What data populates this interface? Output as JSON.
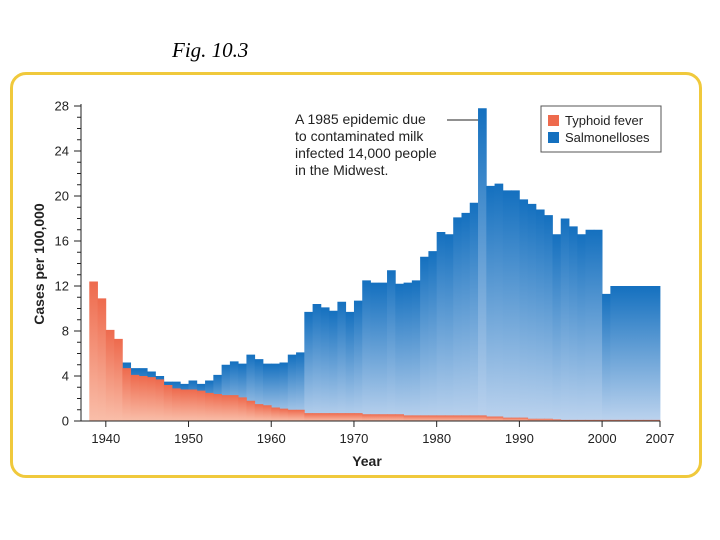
{
  "figure": {
    "label": "Fig. 10.3"
  },
  "colors": {
    "typhoid": "#ee6a4d",
    "typhoid_light": "#f9bea9",
    "salmonella": "#1470bf",
    "salmonella_light": "#bcd3ee",
    "frame": "#f0c93c"
  },
  "chart_data": {
    "type": "area",
    "xlabel": "Year",
    "ylabel": "Cases per 100,000",
    "xlim": [
      1937,
      2007
    ],
    "ylim": [
      0,
      28
    ],
    "x_ticks": [
      1940,
      1950,
      1960,
      1970,
      1980,
      1990,
      2000,
      2007
    ],
    "y_ticks": [
      0,
      4,
      8,
      12,
      16,
      20,
      24,
      28
    ],
    "grid": false,
    "legend": {
      "position": "top-right",
      "entries": [
        "Typhoid fever",
        "Salmonelloses"
      ]
    },
    "annotation": {
      "lines": [
        "A 1985 epidemic due",
        "to contaminated milk",
        "infected 14,000 people",
        "in the Midwest."
      ],
      "points_to": [
        1985,
        27.8
      ]
    },
    "series": [
      {
        "name": "Salmonelloses",
        "x": [
          1942,
          1943,
          1944,
          1945,
          1946,
          1947,
          1948,
          1949,
          1950,
          1951,
          1952,
          1953,
          1954,
          1955,
          1956,
          1957,
          1958,
          1959,
          1960,
          1961,
          1962,
          1963,
          1964,
          1965,
          1966,
          1967,
          1968,
          1969,
          1970,
          1971,
          1972,
          1973,
          1974,
          1975,
          1976,
          1977,
          1978,
          1979,
          1980,
          1981,
          1982,
          1983,
          1984,
          1985,
          1986,
          1987,
          1988,
          1989,
          1990,
          1991,
          1992,
          1993,
          1994,
          1995,
          1996,
          1997,
          1998,
          1999,
          2000,
          2001,
          2002,
          2003,
          2004,
          2005,
          2006
        ],
        "values": [
          5.2,
          4.7,
          4.7,
          4.4,
          4.0,
          3.5,
          3.5,
          3.3,
          3.6,
          3.3,
          3.6,
          4.1,
          5.0,
          5.3,
          5.1,
          5.9,
          5.5,
          5.1,
          5.1,
          5.2,
          5.9,
          6.1,
          9.7,
          10.4,
          10.1,
          9.8,
          10.6,
          9.7,
          10.7,
          12.5,
          12.3,
          12.3,
          13.4,
          12.2,
          12.3,
          12.5,
          14.6,
          15.1,
          16.8,
          16.6,
          18.1,
          18.5,
          19.4,
          27.8,
          20.9,
          21.1,
          20.5,
          20.5,
          19.7,
          19.3,
          18.8,
          18.3,
          16.6,
          18.0,
          17.3,
          16.6,
          17.0,
          17.0,
          11.3,
          12.0,
          12.0,
          12.0,
          12.0,
          12.0,
          12.0
        ]
      },
      {
        "name": "Typhoid fever",
        "x": [
          1938,
          1939,
          1940,
          1941,
          1942,
          1943,
          1944,
          1945,
          1946,
          1947,
          1948,
          1949,
          1950,
          1951,
          1952,
          1953,
          1954,
          1955,
          1956,
          1957,
          1958,
          1959,
          1960,
          1961,
          1962,
          1963,
          1964,
          1965,
          1966,
          1967,
          1968,
          1969,
          1970,
          1971,
          1972,
          1973,
          1974,
          1975,
          1976,
          1977,
          1978,
          1979,
          1980,
          1981,
          1982,
          1983,
          1984,
          1985,
          1986,
          1987,
          1988,
          1989,
          1990,
          1991,
          1992,
          1993,
          1994,
          1995,
          1996,
          1997,
          1998,
          1999,
          2000,
          2001,
          2002,
          2003,
          2004,
          2005,
          2006
        ],
        "values": [
          12.4,
          10.9,
          8.1,
          7.3,
          4.7,
          4.1,
          4.0,
          3.9,
          3.7,
          3.2,
          2.9,
          2.8,
          2.8,
          2.7,
          2.5,
          2.4,
          2.3,
          2.3,
          2.1,
          1.8,
          1.5,
          1.4,
          1.2,
          1.1,
          1.0,
          1.0,
          0.7,
          0.7,
          0.7,
          0.7,
          0.7,
          0.7,
          0.7,
          0.6,
          0.6,
          0.6,
          0.6,
          0.6,
          0.5,
          0.5,
          0.5,
          0.5,
          0.5,
          0.5,
          0.5,
          0.5,
          0.5,
          0.5,
          0.4,
          0.4,
          0.3,
          0.3,
          0.3,
          0.2,
          0.2,
          0.2,
          0.15,
          0.1,
          0.1,
          0.1,
          0.1,
          0.1,
          0.1,
          0.1,
          0.1,
          0.1,
          0.1,
          0.1,
          0.1
        ]
      }
    ]
  }
}
